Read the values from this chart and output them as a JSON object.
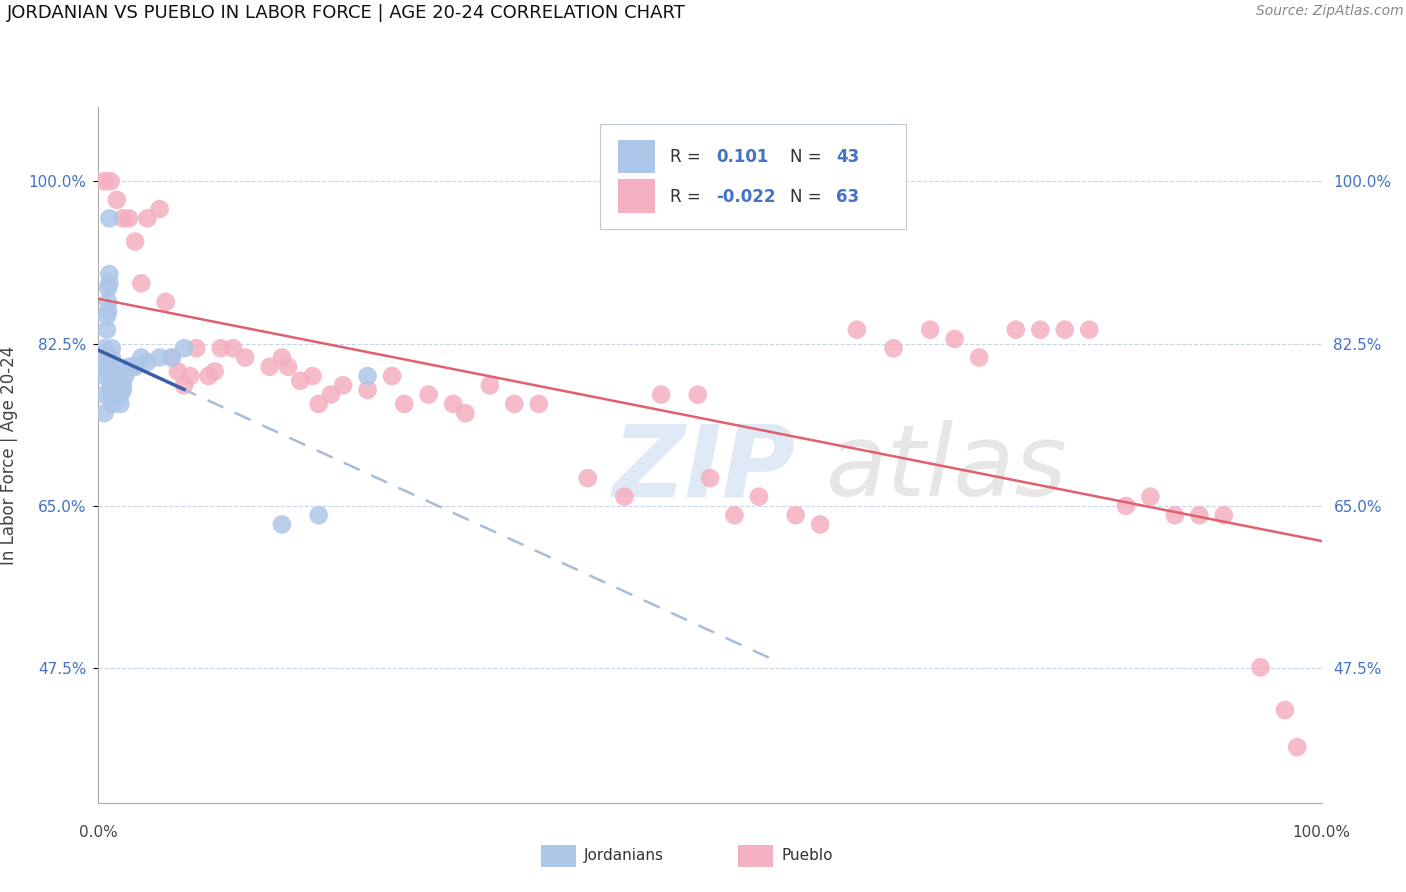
{
  "title": "JORDANIAN VS PUEBLO IN LABOR FORCE | AGE 20-24 CORRELATION CHART",
  "source": "Source: ZipAtlas.com",
  "ylabel": "In Labor Force | Age 20-24",
  "ytick_labels": [
    "47.5%",
    "65.0%",
    "82.5%",
    "100.0%"
  ],
  "ytick_values": [
    0.475,
    0.65,
    0.825,
    1.0
  ],
  "xlim": [
    0.0,
    1.0
  ],
  "ylim": [
    0.33,
    1.08
  ],
  "jordanian_color": "#adc6e8",
  "pueblo_color": "#f4afc0",
  "trend_jordanian_color": "#3a5fa8",
  "trend_pueblo_color": "#e06070",
  "trend_dashed_color": "#a8bcd8",
  "background_color": "#ffffff",
  "watermark_zip": "ZIP",
  "watermark_atlas": "atlas",
  "legend_r1": "R = ",
  "legend_v1": " 0.101",
  "legend_n1": "N = ",
  "legend_nv1": "43",
  "legend_r2": "R = ",
  "legend_v2": "-0.022",
  "legend_n2": "N = ",
  "legend_nv2": "63",
  "jordanian_points_x": [
    0.005,
    0.005,
    0.005,
    0.005,
    0.005,
    0.005,
    0.007,
    0.007,
    0.008,
    0.008,
    0.008,
    0.009,
    0.009,
    0.009,
    0.01,
    0.01,
    0.01,
    0.01,
    0.011,
    0.011,
    0.012,
    0.012,
    0.013,
    0.015,
    0.015,
    0.016,
    0.017,
    0.018,
    0.018,
    0.02,
    0.02,
    0.022,
    0.025,
    0.028,
    0.03,
    0.035,
    0.04,
    0.05,
    0.06,
    0.07,
    0.15,
    0.18,
    0.22
  ],
  "jordanian_points_y": [
    0.75,
    0.77,
    0.79,
    0.8,
    0.81,
    0.82,
    0.84,
    0.855,
    0.86,
    0.87,
    0.885,
    0.89,
    0.9,
    0.96,
    0.77,
    0.78,
    0.79,
    0.8,
    0.81,
    0.82,
    0.76,
    0.77,
    0.78,
    0.79,
    0.8,
    0.775,
    0.785,
    0.76,
    0.77,
    0.775,
    0.78,
    0.79,
    0.8,
    0.8,
    0.8,
    0.81,
    0.805,
    0.81,
    0.81,
    0.82,
    0.63,
    0.64,
    0.79
  ],
  "pueblo_points_x": [
    0.005,
    0.01,
    0.015,
    0.02,
    0.025,
    0.03,
    0.035,
    0.04,
    0.05,
    0.055,
    0.06,
    0.065,
    0.07,
    0.075,
    0.08,
    0.09,
    0.095,
    0.1,
    0.11,
    0.12,
    0.14,
    0.15,
    0.155,
    0.165,
    0.175,
    0.18,
    0.19,
    0.2,
    0.22,
    0.24,
    0.25,
    0.27,
    0.29,
    0.3,
    0.32,
    0.34,
    0.36,
    0.4,
    0.43,
    0.46,
    0.49,
    0.5,
    0.52,
    0.54,
    0.57,
    0.59,
    0.62,
    0.65,
    0.68,
    0.7,
    0.72,
    0.75,
    0.77,
    0.79,
    0.81,
    0.84,
    0.86,
    0.88,
    0.9,
    0.92,
    0.95,
    0.97,
    0.98
  ],
  "pueblo_points_y": [
    1.0,
    1.0,
    0.98,
    0.96,
    0.96,
    0.935,
    0.89,
    0.96,
    0.97,
    0.87,
    0.81,
    0.795,
    0.78,
    0.79,
    0.82,
    0.79,
    0.795,
    0.82,
    0.82,
    0.81,
    0.8,
    0.81,
    0.8,
    0.785,
    0.79,
    0.76,
    0.77,
    0.78,
    0.775,
    0.79,
    0.76,
    0.77,
    0.76,
    0.75,
    0.78,
    0.76,
    0.76,
    0.68,
    0.66,
    0.77,
    0.77,
    0.68,
    0.64,
    0.66,
    0.64,
    0.63,
    0.84,
    0.82,
    0.84,
    0.83,
    0.81,
    0.84,
    0.84,
    0.84,
    0.84,
    0.65,
    0.66,
    0.64,
    0.64,
    0.64,
    0.476,
    0.43,
    0.39
  ]
}
